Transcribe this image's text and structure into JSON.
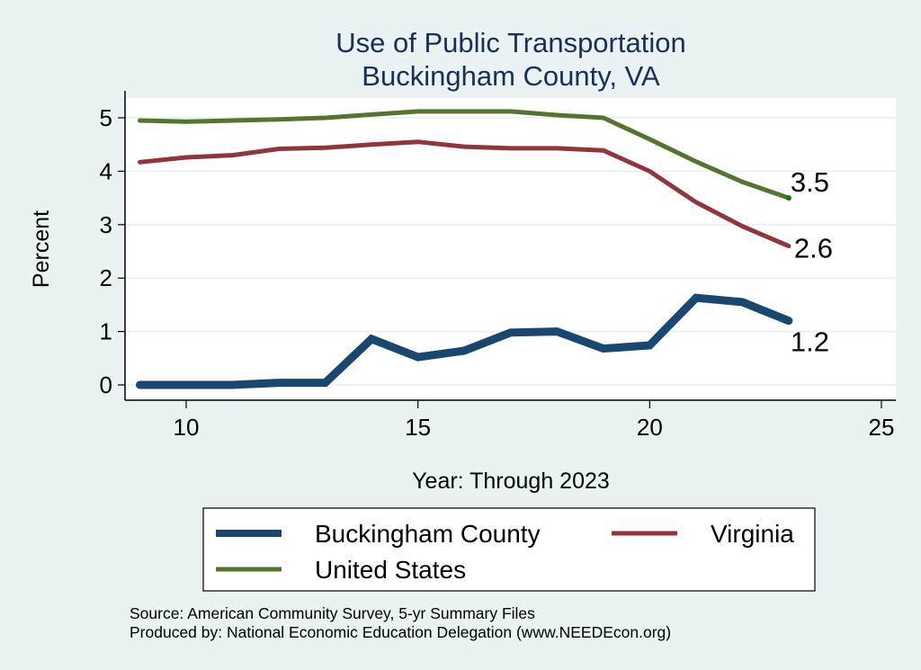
{
  "chart_data": {
    "type": "line",
    "title": [
      "Use of Public Transportation",
      "Buckingham County, VA"
    ],
    "xlabel": "Year: Through 2023",
    "ylabel": "Percent",
    "xlim": [
      9,
      25
    ],
    "ylim": [
      0,
      5.2
    ],
    "xticks": [
      10,
      15,
      20,
      25
    ],
    "yticks": [
      0,
      1,
      2,
      3,
      4,
      5
    ],
    "grid": true,
    "x": [
      9,
      10,
      11,
      12,
      13,
      14,
      15,
      16,
      17,
      18,
      19,
      20,
      21,
      22,
      23
    ],
    "series": [
      {
        "name": "Buckingham County",
        "color": "#1a476f",
        "values": [
          0,
          0,
          0,
          0.04,
          0.04,
          0.86,
          0.52,
          0.64,
          0.98,
          1.0,
          0.68,
          0.74,
          1.63,
          1.55,
          1.2
        ],
        "end_label": "1.2"
      },
      {
        "name": "Virginia",
        "color": "#90353b",
        "values": [
          4.17,
          4.26,
          4.3,
          4.42,
          4.44,
          4.5,
          4.55,
          4.46,
          4.43,
          4.43,
          4.39,
          4.0,
          3.42,
          2.97,
          2.6
        ],
        "end_label": "2.6"
      },
      {
        "name": "United States",
        "color": "#55752f",
        "values": [
          4.95,
          4.93,
          4.95,
          4.97,
          5.0,
          5.06,
          5.12,
          5.12,
          5.12,
          5.05,
          5.0,
          4.6,
          4.18,
          3.8,
          3.5
        ],
        "end_label": "3.5"
      }
    ],
    "legend": {
      "placement": "bottom",
      "entries": [
        "Buckingham County",
        "Virginia",
        "United States"
      ]
    },
    "notes": [
      "Source: American Community Survey, 5-yr Summary Files",
      "Produced by: National Economic Education Delegation (www.NEEDEcon.org)"
    ]
  }
}
